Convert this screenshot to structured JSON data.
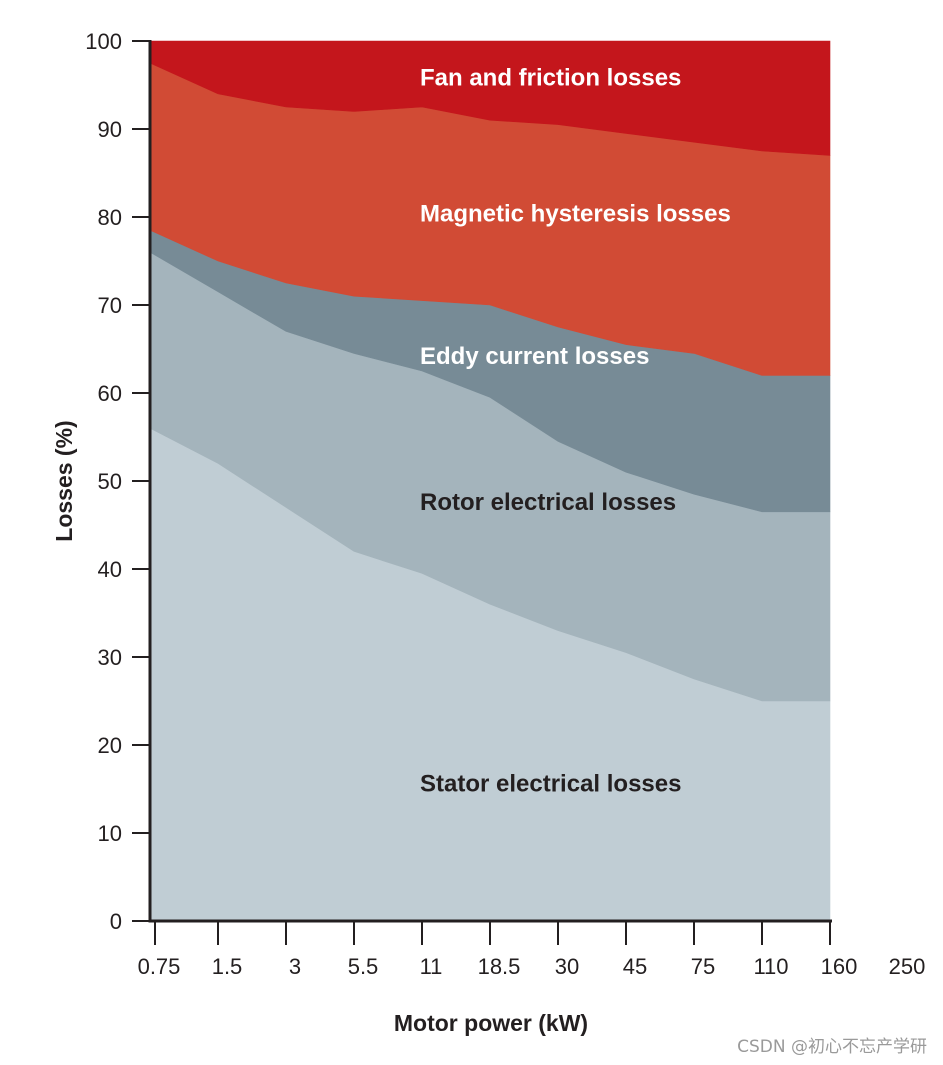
{
  "chart_data": {
    "type": "area",
    "stacked": true,
    "title": "",
    "xlabel": "Motor power (kW)",
    "ylabel": "Losses (%)",
    "ylim": [
      0,
      100
    ],
    "yticks": [
      0,
      10,
      20,
      30,
      40,
      50,
      60,
      70,
      80,
      90,
      100
    ],
    "x_tick_labels": [
      "0.75",
      "1.5",
      "3",
      "5.5",
      "11",
      "18.5",
      "30",
      "45",
      "75",
      "110",
      "160",
      "250"
    ],
    "x": [
      0.75,
      1.5,
      3,
      5.5,
      11,
      18.5,
      30,
      45,
      75,
      110,
      160
    ],
    "series": [
      {
        "name": "Stator electrical losses",
        "color": "#c0cdd4",
        "values": [
          56,
          52,
          47,
          42,
          39.5,
          36,
          33,
          30.5,
          27.5,
          25,
          25
        ]
      },
      {
        "name": "Rotor electrical losses",
        "color": "#a4b4bc",
        "values": [
          20,
          19.5,
          20,
          22.5,
          23,
          23.5,
          21.5,
          20.5,
          21,
          21.5,
          21.5
        ]
      },
      {
        "name": "Eddy current losses",
        "color": "#778b96",
        "values": [
          2.5,
          3.5,
          5.5,
          6.5,
          8,
          10.5,
          13,
          14.5,
          16,
          15.5,
          15.5
        ]
      },
      {
        "name": "Magnetic hysteresis losses",
        "color": "#d14b35",
        "values": [
          19,
          19,
          20,
          21,
          22,
          21,
          23,
          24,
          24,
          25.5,
          25
        ]
      },
      {
        "name": "Fan and friction losses",
        "color": "#c4161c",
        "values": [
          2.5,
          6,
          7.5,
          8,
          7.5,
          9,
          9.5,
          10.5,
          11.5,
          12.5,
          13
        ]
      }
    ],
    "band_labels": [
      {
        "text": "Fan and friction losses",
        "color": "#ffffff"
      },
      {
        "text": "Magnetic hysteresis losses",
        "color": "#ffffff"
      },
      {
        "text": "Eddy current losses",
        "color": "#ffffff"
      },
      {
        "text": "Rotor electrical losses",
        "color": "#231f20"
      },
      {
        "text": "Stator electrical losses",
        "color": "#231f20"
      }
    ]
  },
  "watermark": "CSDN @初心不忘产学研"
}
